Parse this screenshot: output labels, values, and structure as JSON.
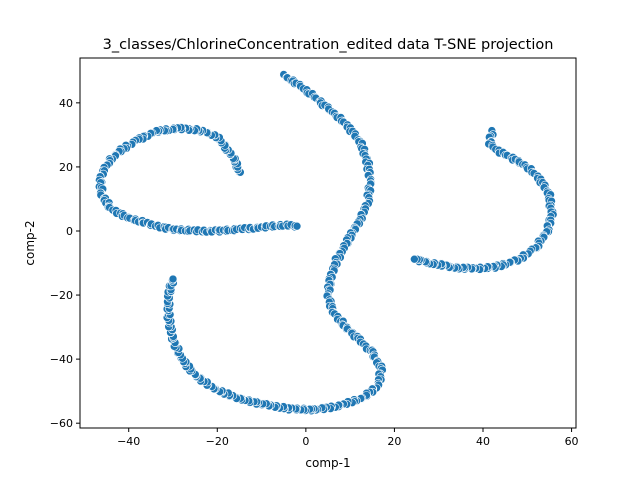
{
  "chart_data": {
    "type": "scatter",
    "title": "3_classes/ChlorineConcentration_edited data T-SNE projection",
    "xlabel": "comp-1",
    "ylabel": "comp-2",
    "xlim": [
      -51,
      61
    ],
    "ylim": [
      -61.5,
      54
    ],
    "xticks": [
      -40,
      -20,
      0,
      20,
      40,
      60
    ],
    "yticks": [
      -60,
      -40,
      -20,
      0,
      20,
      40
    ],
    "grid": false,
    "legend": "none",
    "marker_color": "#1f77b4",
    "marker_edge": "#ffffff",
    "curves": [
      [
        [
          -15,
          18
        ],
        [
          -16,
          22
        ],
        [
          -18,
          26
        ],
        [
          -20,
          29.5
        ],
        [
          -24,
          31.5
        ],
        [
          -29,
          32
        ],
        [
          -34,
          31
        ],
        [
          -38,
          28.5
        ],
        [
          -42,
          25
        ],
        [
          -45,
          21
        ],
        [
          -46.5,
          16
        ],
        [
          -46,
          11
        ],
        [
          -44,
          7
        ],
        [
          -40,
          4
        ],
        [
          -35,
          2
        ],
        [
          -30,
          0.5
        ],
        [
          -25,
          0
        ],
        [
          -20,
          0
        ],
        [
          -15,
          0.5
        ],
        [
          -10,
          1.2
        ],
        [
          -5,
          1.8
        ],
        [
          -2,
          1.5
        ]
      ],
      [
        [
          -5,
          48.5
        ],
        [
          -2,
          46
        ],
        [
          1,
          43
        ],
        [
          4,
          39.5
        ],
        [
          7,
          36
        ],
        [
          10,
          32
        ],
        [
          12.5,
          27
        ],
        [
          14,
          21
        ],
        [
          14.5,
          15
        ],
        [
          14,
          9
        ],
        [
          12,
          3
        ],
        [
          9.5,
          -3
        ],
        [
          7,
          -9
        ],
        [
          5.5,
          -15
        ],
        [
          5,
          -20
        ],
        [
          6,
          -25
        ],
        [
          9,
          -30
        ],
        [
          12,
          -34
        ],
        [
          15,
          -38
        ],
        [
          17,
          -43
        ],
        [
          16.5,
          -48
        ],
        [
          13,
          -52
        ],
        [
          8,
          -54.5
        ],
        [
          2,
          -55.8
        ],
        [
          -4,
          -55.5
        ],
        [
          -10,
          -54
        ],
        [
          -16,
          -52
        ],
        [
          -21,
          -49
        ],
        [
          -25,
          -45
        ],
        [
          -28,
          -40
        ],
        [
          -30,
          -34
        ],
        [
          -31,
          -27
        ],
        [
          -31,
          -20
        ],
        [
          -30,
          -15
        ]
      ],
      [
        [
          42,
          31
        ],
        [
          41.5,
          27
        ],
        [
          44,
          24.5
        ],
        [
          47,
          22.5
        ],
        [
          50,
          20
        ],
        [
          53,
          16
        ],
        [
          55,
          11
        ],
        [
          55.5,
          5
        ],
        [
          54.5,
          0
        ],
        [
          52,
          -5
        ],
        [
          48,
          -9
        ],
        [
          43,
          -11.2
        ],
        [
          38,
          -11.8
        ],
        [
          33,
          -11.3
        ],
        [
          28,
          -10
        ],
        [
          24.5,
          -8.8
        ]
      ]
    ]
  }
}
